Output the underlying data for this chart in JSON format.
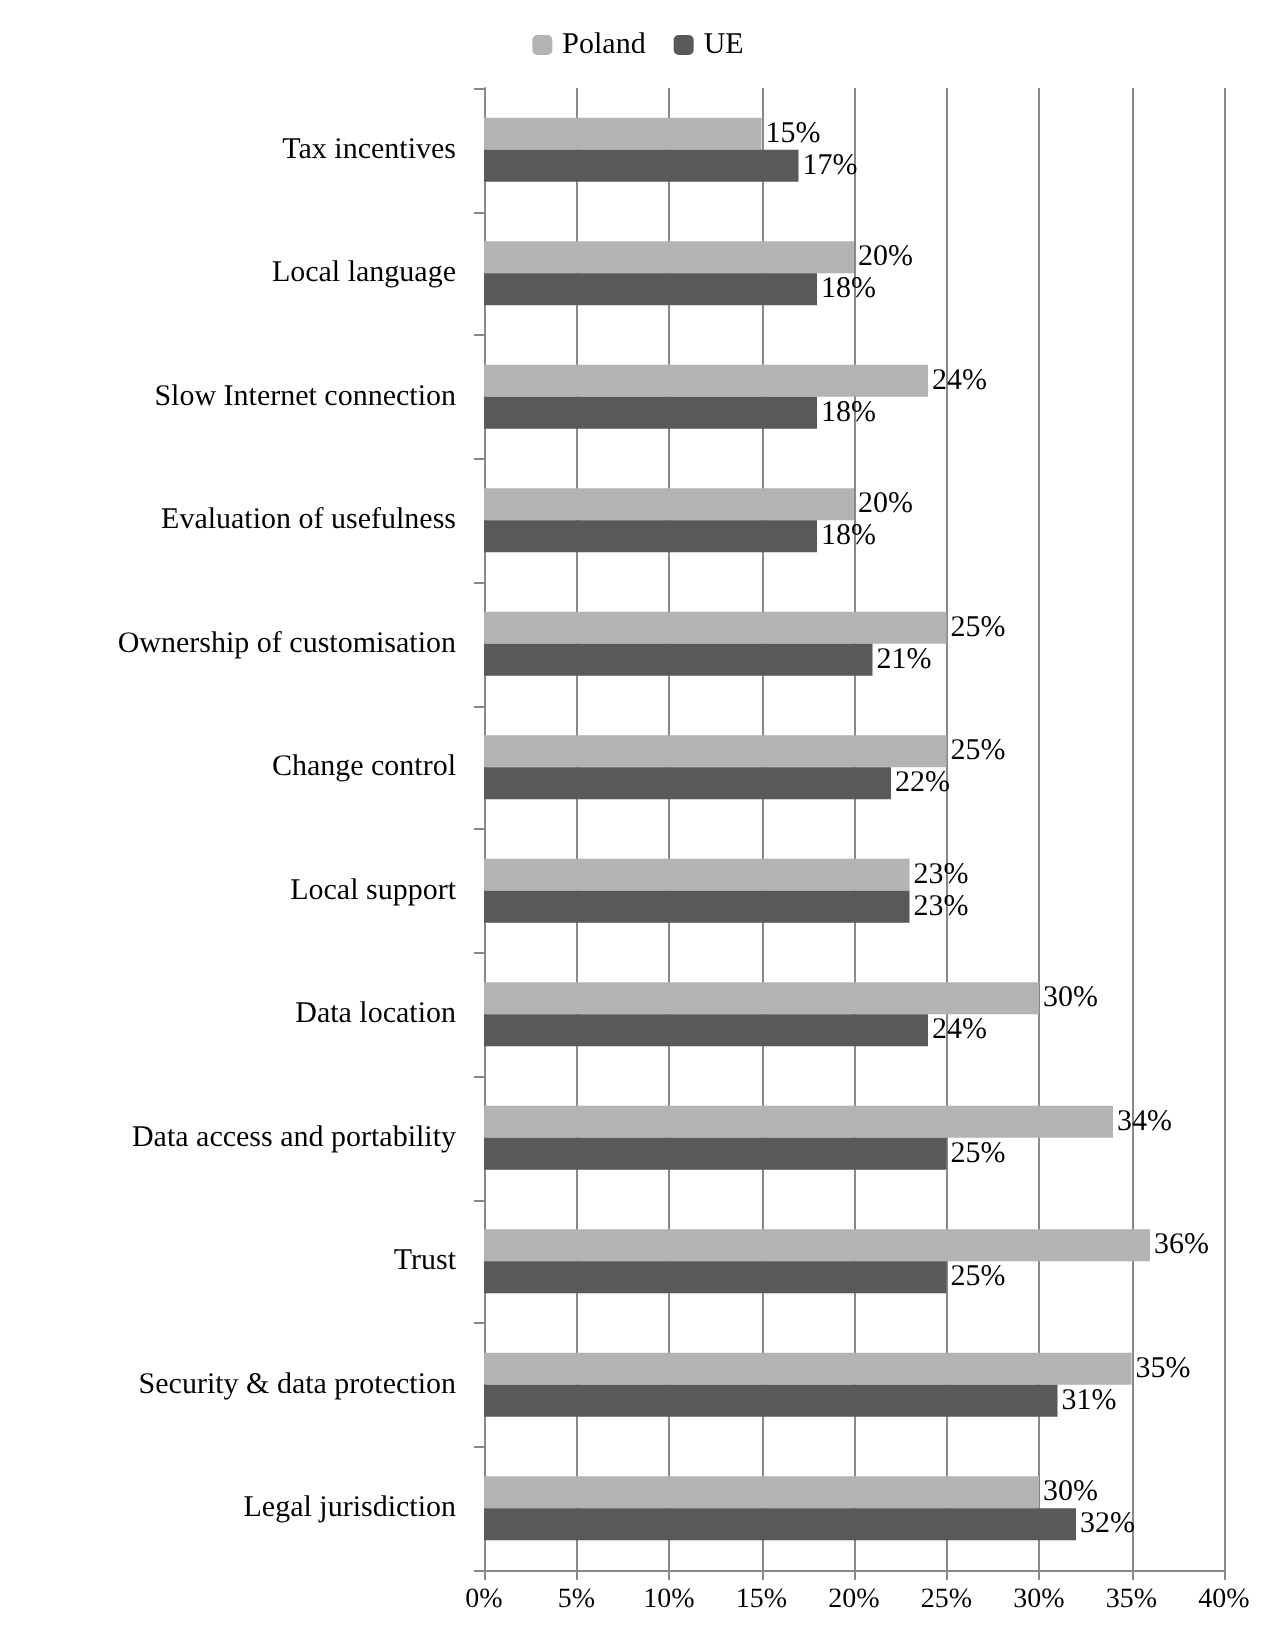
{
  "chart_data": {
    "type": "bar",
    "orientation": "horizontal",
    "categories": [
      "Tax incentives",
      "Local language",
      "Slow Internet connection",
      "Evaluation of usefulness",
      "Ownership of customisation",
      "Change control",
      "Local support",
      "Data location",
      "Data access and portability",
      "Trust",
      "Security & data protection",
      "Legal jurisdiction"
    ],
    "series": [
      {
        "name": "Poland",
        "color": "#b3b3b3",
        "values": [
          15,
          20,
          24,
          20,
          25,
          25,
          23,
          30,
          34,
          36,
          35,
          30
        ],
        "value_labels": [
          "15%",
          "20%",
          "24%",
          "20%",
          "25%",
          "25%",
          "23%",
          "30%",
          "34%",
          "36%",
          "35%",
          "30%"
        ]
      },
      {
        "name": "UE",
        "color": "#595959",
        "values": [
          17,
          18,
          18,
          18,
          21,
          22,
          23,
          24,
          25,
          25,
          31,
          32
        ],
        "value_labels": [
          "17%",
          "18%",
          "18%",
          "18%",
          "21%",
          "22%",
          "23%",
          "24%",
          "25%",
          "25%",
          "31%",
          "32%"
        ]
      }
    ],
    "xlim": [
      0,
      40
    ],
    "xticks": [
      {
        "value": 0,
        "label": "0%"
      },
      {
        "value": 5,
        "label": "5%"
      },
      {
        "value": 10,
        "label": "10%"
      },
      {
        "value": 15,
        "label": "15%"
      },
      {
        "value": 20,
        "label": "20%"
      },
      {
        "value": 25,
        "label": "25%"
      },
      {
        "value": 30,
        "label": "30%"
      },
      {
        "value": 35,
        "label": "35%"
      },
      {
        "value": 40,
        "label": "40%"
      }
    ],
    "grid": "x",
    "legend": "top"
  }
}
